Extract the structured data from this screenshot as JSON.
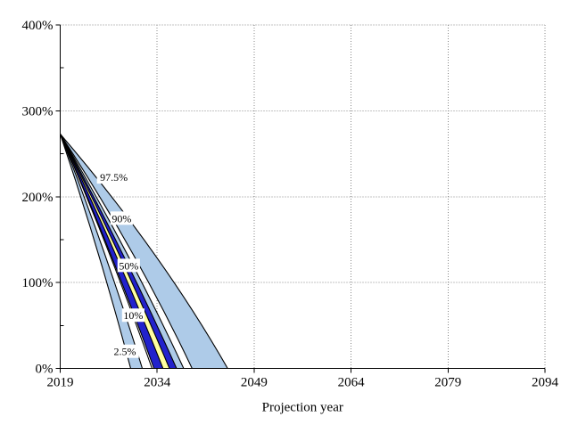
{
  "chart_data": {
    "type": "area",
    "subtype": "fan-projection-chart",
    "title": "",
    "xlabel": "Projection year",
    "ylabel": "",
    "xlim": [
      2019,
      2094
    ],
    "ylim_pct": [
      0,
      400
    ],
    "grid": true,
    "x_tick_years": [
      "2019",
      "2034",
      "2049",
      "2064",
      "2079",
      "2094"
    ],
    "y_tick_labels": [
      "0%",
      "100%",
      "200%",
      "300%",
      "400%"
    ],
    "y_tick_values": [
      0,
      100,
      200,
      300,
      400
    ],
    "y_minor_tick_values": [
      50,
      150,
      250,
      350
    ],
    "apex": {
      "year": 2019,
      "value_pct": 273
    },
    "boundaries": [
      {
        "zero_year": 2029.9,
        "bow": 0.06
      },
      {
        "zero_year": 2031.7,
        "bow": 0.06
      },
      {
        "zero_year": 2033.2,
        "bow": 0.05
      },
      {
        "zero_year": 2033.5,
        "bow": 0.05
      },
      {
        "zero_year": 2034.9,
        "bow": 0.05
      },
      {
        "zero_year": 2035.9,
        "bow": 0.05
      },
      {
        "zero_year": 2037.0,
        "bow": 0.05
      },
      {
        "zero_year": 2038.1,
        "bow": 0.06
      },
      {
        "zero_year": 2039.4,
        "bow": 0.08
      },
      {
        "zero_year": 2044.9,
        "bow": 0.1
      }
    ],
    "bands": [
      {
        "name": "left-light-blue-band",
        "from": 0,
        "to": 1,
        "color_key": "light_blue"
      },
      {
        "name": "inner-dark-blue-band-left",
        "from": 3,
        "to": 4,
        "color_key": "dark_blue"
      },
      {
        "name": "yellow-median-band",
        "from": 4,
        "to": 5,
        "color_key": "yellow"
      },
      {
        "name": "inner-dark-blue-band-right",
        "from": 5,
        "to": 6,
        "color_key": "dark_blue"
      },
      {
        "name": "inner-light-blue-band",
        "from": 6,
        "to": 7,
        "color_key": "light_blue"
      },
      {
        "name": "wide-light-blue-band",
        "from": 8,
        "to": 9,
        "color_key": "light_blue"
      }
    ],
    "percentile_labels": [
      {
        "text": "97.5%",
        "year": 2027.3,
        "value_pct": 223
      },
      {
        "text": "90%",
        "year": 2028.5,
        "value_pct": 175
      },
      {
        "text": "50%",
        "year": 2029.6,
        "value_pct": 120
      },
      {
        "text": "10%",
        "year": 2030.3,
        "value_pct": 62
      },
      {
        "text": "2.5%",
        "year": 2029.0,
        "value_pct": 20
      }
    ],
    "colors": {
      "light_blue": "#aecbe8",
      "dark_blue": "#2222cc",
      "yellow": "#ffffa0",
      "grid": "#888888",
      "axis": "#000000",
      "label_bg": "#ffffff",
      "text": "#000000",
      "background": "#ffffff"
    },
    "legend": "none"
  }
}
